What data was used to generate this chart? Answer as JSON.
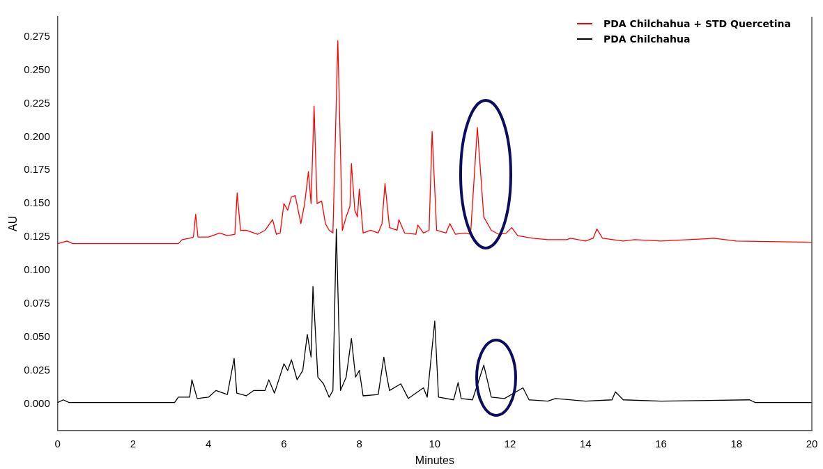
{
  "chart_data": {
    "type": "line",
    "xlabel": "Minutes",
    "ylabel": "AU",
    "legend": "top right",
    "marker": "none",
    "line_style": "solid",
    "grid": false,
    "xlim": [
      0,
      20
    ],
    "xticks": [
      0,
      2,
      4,
      6,
      8,
      10,
      12,
      14,
      16,
      18,
      20
    ],
    "ylim": [
      -0.02,
      0.29
    ],
    "yticks": [
      {
        "value": 0,
        "label": "0.000"
      },
      0.025,
      {
        "value": 0.05,
        "label": "0.050"
      },
      0.075,
      {
        "value": 0.1,
        "label": "0.100"
      },
      0.125,
      {
        "value": 0.15,
        "label": "0.150"
      },
      0.175,
      {
        "value": 0.2,
        "label": "0.200"
      },
      0.225,
      {
        "value": 0.25,
        "label": "0.250"
      },
      0.275
    ],
    "series": [
      {
        "name": "PDA Chilchahua + STD Quercetina",
        "color": "#ff0000",
        "x": [
          0,
          0.25,
          0.4,
          1,
          2,
          3,
          3.2,
          3.3,
          3.5,
          3.6,
          3.66,
          3.72,
          4,
          4.3,
          4.5,
          4.7,
          4.76,
          4.85,
          5,
          5.3,
          5.5,
          5.7,
          5.8,
          5.9,
          6,
          6.1,
          6.2,
          6.3,
          6.45,
          6.55,
          6.65,
          6.72,
          6.8,
          6.88,
          7,
          7.1,
          7.2,
          7.3,
          7.43,
          7.55,
          7.65,
          7.75,
          7.79,
          7.88,
          7.95,
          8,
          8.1,
          8.3,
          8.5,
          8.6,
          8.68,
          8.8,
          9,
          9.05,
          9.2,
          9.5,
          9.55,
          9.7,
          9.85,
          9.93,
          10.05,
          10.3,
          10.4,
          10.55,
          10.8,
          10.95,
          11.13,
          11.3,
          11.5,
          11.7,
          11.9,
          12.04,
          12.2,
          12.6,
          13,
          13.5,
          13.6,
          14,
          14.2,
          14.3,
          14.45,
          15,
          15.3,
          16,
          17.4,
          18,
          20
        ],
        "values": [
          0.12,
          0.122,
          0.12,
          0.12,
          0.12,
          0.12,
          0.12,
          0.123,
          0.124,
          0.125,
          0.142,
          0.125,
          0.125,
          0.128,
          0.126,
          0.127,
          0.158,
          0.13,
          0.13,
          0.127,
          0.13,
          0.138,
          0.127,
          0.128,
          0.15,
          0.145,
          0.155,
          0.156,
          0.135,
          0.15,
          0.174,
          0.15,
          0.223,
          0.15,
          0.152,
          0.135,
          0.13,
          0.128,
          0.272,
          0.13,
          0.14,
          0.148,
          0.18,
          0.145,
          0.14,
          0.161,
          0.128,
          0.13,
          0.128,
          0.135,
          0.165,
          0.132,
          0.13,
          0.138,
          0.128,
          0.127,
          0.134,
          0.128,
          0.13,
          0.204,
          0.13,
          0.128,
          0.135,
          0.127,
          0.128,
          0.127,
          0.207,
          0.14,
          0.13,
          0.127,
          0.128,
          0.132,
          0.126,
          0.124,
          0.123,
          0.123,
          0.124,
          0.122,
          0.124,
          0.131,
          0.124,
          0.122,
          0.123,
          0.122,
          0.124,
          0.122,
          0.121
        ]
      },
      {
        "name": "PDA Chilchahua",
        "color": "#000000",
        "x": [
          0,
          0.15,
          0.3,
          1,
          2,
          3,
          3.1,
          3.2,
          3.5,
          3.56,
          3.7,
          4,
          4.2,
          4.5,
          4.68,
          4.75,
          5,
          5.2,
          5.5,
          5.6,
          5.75,
          6,
          6.1,
          6.2,
          6.35,
          6.5,
          6.62,
          6.72,
          6.77,
          6.9,
          7.05,
          7.2,
          7.3,
          7.39,
          7.5,
          7.65,
          7.79,
          7.9,
          8,
          8.1,
          8.5,
          8.65,
          8.72,
          8.8,
          9.1,
          9.3,
          9.7,
          9.8,
          10,
          10.1,
          10.5,
          10.62,
          10.7,
          11,
          11.3,
          11.5,
          11.85,
          12.34,
          12.5,
          13,
          13.2,
          14,
          14.7,
          14.79,
          15,
          16,
          18.35,
          18.5,
          20
        ],
        "values": [
          0.001,
          0.003,
          0.001,
          0.001,
          0.001,
          0.001,
          0.001,
          0.005,
          0.005,
          0.018,
          0.004,
          0.005,
          0.01,
          0.007,
          0.034,
          0.008,
          0.006,
          0.01,
          0.01,
          0.018,
          0.008,
          0.03,
          0.025,
          0.033,
          0.018,
          0.025,
          0.052,
          0.035,
          0.088,
          0.02,
          0.015,
          0.005,
          0.01,
          0.131,
          0.01,
          0.02,
          0.049,
          0.02,
          0.025,
          0.006,
          0.007,
          0.035,
          0.022,
          0.01,
          0.015,
          0.004,
          0.012,
          0.005,
          0.062,
          0.005,
          0.003,
          0.016,
          0.004,
          0.003,
          0.029,
          0.005,
          0.004,
          0.012,
          0.003,
          0.002,
          0.004,
          0.002,
          0.003,
          0.009,
          0.003,
          0.002,
          0.003,
          0.001,
          0.001
        ]
      }
    ]
  }
}
